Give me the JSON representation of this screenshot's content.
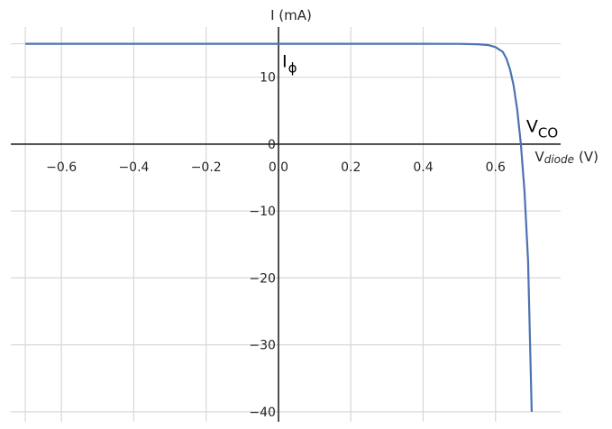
{
  "chart_data": {
    "type": "line",
    "title": "",
    "xlabel_main": "V",
    "xlabel_sub": "diode",
    "xlabel_unit": "(V)",
    "ylabel": "I (mA)",
    "xlim": [
      -0.74,
      0.78
    ],
    "ylim": [
      -41.5,
      17.5
    ],
    "x_ticks": [
      -0.6,
      -0.4,
      -0.2,
      0.0,
      0.2,
      0.4,
      0.6
    ],
    "x_tick_labels": [
      "−0.6",
      "−0.4",
      "−0.2",
      "0.0",
      "0.2",
      "0.4",
      "0.6"
    ],
    "y_ticks": [
      -40,
      -30,
      -20,
      -10,
      0,
      10
    ],
    "y_tick_labels": [
      "−40",
      "−30",
      "−20",
      "−10",
      "0",
      "10"
    ],
    "grid": true,
    "series": [
      {
        "color": "#4c72b0",
        "x": [
          -0.7,
          -0.6,
          -0.4,
          -0.2,
          0.0,
          0.2,
          0.4,
          0.5,
          0.55,
          0.58,
          0.6,
          0.62,
          0.63,
          0.64,
          0.65,
          0.66,
          0.67,
          0.68,
          0.69,
          0.7
        ],
        "y": [
          15.0,
          15.0,
          15.0,
          15.0,
          15.0,
          15.0,
          15.0,
          14.98,
          14.93,
          14.8,
          14.5,
          13.8,
          12.8,
          11.2,
          8.8,
          5.2,
          0.0,
          -7.0,
          -17.5,
          -40.0
        ]
      }
    ],
    "annotations": [
      {
        "main": "I",
        "sub": "ϕ",
        "x": 0.01,
        "y": 11.5
      },
      {
        "main": "V",
        "sub": "CO",
        "x": 0.685,
        "y": 1.8
      }
    ]
  }
}
